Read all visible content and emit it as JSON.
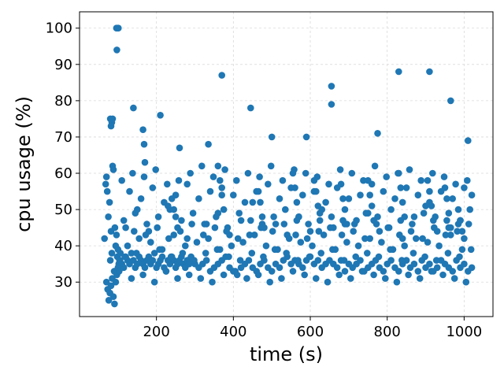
{
  "chart_data": {
    "type": "scatter",
    "title": "",
    "xlabel": "time (s)",
    "ylabel": "cpu usage (%)",
    "xlim": [
      0,
      1075
    ],
    "ylim": [
      20.5,
      104.5
    ],
    "xticks": [
      200,
      400,
      600,
      800,
      1000
    ],
    "yticks": [
      30,
      40,
      50,
      60,
      70,
      80,
      90,
      100
    ],
    "grid": true,
    "marker_color": "#1f77b4",
    "series": [
      {
        "x": [
          65,
          68,
          70,
          72,
          75,
          78,
          80,
          82,
          84,
          86,
          88,
          90,
          92,
          94,
          96,
          98,
          100,
          102,
          104,
          106,
          70,
          73,
          76,
          79,
          82,
          85,
          88,
          91,
          94,
          97,
          100,
          103,
          105,
          110,
          115,
          120,
          125,
          130,
          135,
          140,
          145,
          150,
          155,
          160,
          165,
          170,
          175,
          180,
          185,
          190,
          195,
          200,
          205,
          210,
          215,
          220,
          225,
          230,
          235,
          240,
          245,
          250,
          255,
          260,
          265,
          270,
          275,
          280,
          285,
          290,
          295,
          300,
          310,
          320,
          330,
          340,
          350,
          360,
          370,
          380,
          390,
          400,
          410,
          420,
          430,
          440,
          450,
          460,
          470,
          480,
          490,
          500,
          510,
          520,
          530,
          540,
          550,
          560,
          570,
          580,
          590,
          600,
          610,
          620,
          630,
          640,
          650,
          660,
          670,
          680,
          690,
          700,
          710,
          720,
          730,
          740,
          750,
          760,
          770,
          780,
          790,
          800,
          810,
          820,
          830,
          840,
          850,
          860,
          870,
          880,
          890,
          900,
          910,
          920,
          930,
          940,
          950,
          960,
          970,
          980,
          990,
          1000,
          1010,
          1020,
          96,
          99,
          101,
          97,
          80,
          82,
          84,
          86,
          140,
          165,
          168,
          170,
          210,
          260,
          335,
          370,
          445,
          500,
          590,
          655,
          655,
          775,
          830,
          910,
          965,
          1010,
          120,
          150,
          180,
          230,
          280,
          330,
          360,
          390,
          420,
          450,
          480,
          510,
          540,
          570,
          600,
          630,
          660,
          690,
          720,
          750,
          780,
          810,
          840,
          870,
          900,
          930,
          960,
          990,
          125,
          155,
          185,
          215,
          245,
          275,
          305,
          335,
          365,
          395,
          425,
          455,
          485,
          515,
          545,
          575,
          605,
          635,
          665,
          695,
          725,
          755,
          785,
          815,
          845,
          875,
          905,
          935,
          965,
          995,
          130,
          160,
          190,
          220,
          250,
          280,
          310,
          340,
          370,
          400,
          430,
          460,
          490,
          520,
          550,
          580,
          610,
          640,
          670,
          700,
          730,
          760,
          790,
          820,
          850,
          880,
          910,
          940,
          970,
          1000,
          1020,
          115,
          145,
          175,
          205,
          235,
          265,
          295,
          325,
          355,
          385,
          415,
          445,
          475,
          505,
          535,
          565,
          595,
          625,
          655,
          685,
          715,
          745,
          775,
          805,
          835,
          865,
          895,
          925,
          955,
          985,
          1015,
          110,
          138,
          168,
          198,
          228,
          258,
          288,
          318,
          348,
          378,
          408,
          438,
          468,
          498,
          528,
          558,
          588,
          618,
          648,
          678,
          708,
          738,
          768,
          798,
          828,
          858,
          888,
          918,
          948,
          978,
          1008,
          118,
          148,
          178,
          208,
          238,
          268,
          298,
          328,
          358,
          388,
          418,
          448,
          478,
          508,
          538,
          568,
          598,
          628,
          658,
          688,
          718,
          748,
          778,
          808,
          838,
          868,
          898,
          928,
          958,
          988,
          1018,
          135,
          165,
          195,
          225,
          255,
          285,
          315,
          345,
          375,
          405,
          435,
          465,
          495,
          525,
          555,
          585,
          615,
          645,
          675,
          705,
          735,
          765,
          795,
          825,
          855,
          885,
          915,
          945,
          975,
          1005,
          142,
          172,
          202,
          232,
          262,
          292,
          322,
          352,
          382,
          412,
          442,
          472,
          502,
          532,
          562,
          592,
          622,
          652,
          682,
          712,
          742,
          772,
          802,
          832,
          862,
          892,
          922,
          952,
          982,
          1012,
          240,
          245,
          250,
          255,
          360,
          365,
          370,
          375,
          465,
          470,
          475,
          480,
          555,
          560,
          565,
          570,
          610,
          615,
          620,
          625,
          680,
          685,
          690,
          695,
          750,
          755,
          760,
          765,
          830,
          835,
          840,
          845,
          905,
          910,
          915,
          920,
          950,
          955,
          960,
          965,
          985,
          990,
          995,
          1000
        ],
        "y": [
          42,
          57,
          59,
          55,
          48,
          52,
          36,
          44,
          38,
          62,
          61,
          33,
          45,
          40,
          43,
          37,
          39,
          35,
          36,
          38,
          30,
          28,
          25,
          27,
          29,
          31,
          26,
          24,
          30,
          32,
          34,
          33,
          36,
          35,
          34,
          37,
          36,
          35,
          38,
          36,
          34,
          35,
          37,
          36,
          35,
          34,
          36,
          37,
          35,
          36,
          38,
          34,
          35,
          36,
          37,
          34,
          33,
          36,
          35,
          37,
          36,
          34,
          35,
          36,
          37,
          35,
          34,
          36,
          35,
          37,
          36,
          35,
          34,
          35,
          36,
          33,
          34,
          35,
          36,
          37,
          34,
          33,
          32,
          34,
          35,
          36,
          34,
          33,
          35,
          36,
          34,
          33,
          35,
          34,
          36,
          37,
          35,
          36,
          35,
          34,
          36,
          37,
          35,
          36,
          34,
          35,
          36,
          35,
          34,
          36,
          33,
          35,
          34,
          35,
          36,
          33,
          34,
          35,
          36,
          34,
          33,
          35,
          36,
          34,
          33,
          35,
          36,
          34,
          35,
          33,
          36,
          34,
          35,
          33,
          34,
          36,
          35,
          34,
          33,
          36,
          34,
          35,
          33,
          34,
          100,
          100,
          100,
          94,
          75,
          73,
          74,
          75,
          78,
          72,
          68,
          63,
          76,
          67,
          68,
          87,
          78,
          70,
          70,
          84,
          79,
          71,
          88,
          88,
          80,
          69,
          45,
          50,
          44,
          51,
          42,
          46,
          49,
          43,
          47,
          52,
          45,
          46,
          43,
          48,
          44,
          50,
          45,
          46,
          47,
          49,
          44,
          50,
          42,
          48,
          51,
          44,
          45,
          47,
          40,
          42,
          41,
          39,
          43,
          40,
          41,
          42,
          39,
          40,
          41,
          43,
          40,
          39,
          42,
          41,
          40,
          43,
          39,
          41,
          40,
          42,
          41,
          39,
          40,
          42,
          41,
          40,
          43,
          39,
          55,
          53,
          56,
          52,
          54,
          57,
          53,
          55,
          56,
          54,
          52,
          55,
          57,
          53,
          56,
          54,
          55,
          52,
          56,
          53,
          54,
          57,
          55,
          53,
          56,
          54,
          52,
          55,
          53,
          56,
          54,
          47,
          49,
          46,
          48,
          50,
          47,
          49,
          46,
          48,
          45,
          49,
          47,
          46,
          48,
          50,
          47,
          46,
          49,
          48,
          47,
          46,
          49,
          48,
          45,
          47,
          46,
          49,
          48,
          47,
          46,
          50,
          58,
          60,
          59,
          61,
          57,
          58,
          60,
          62,
          59,
          61,
          58,
          60,
          59,
          62,
          58,
          61,
          60,
          59,
          57,
          61,
          60,
          58,
          62,
          59,
          60,
          61,
          58,
          60,
          59,
          57,
          58,
          37,
          38,
          36,
          39,
          37,
          38,
          36,
          38,
          39,
          37,
          36,
          38,
          37,
          39,
          38,
          36,
          37,
          38,
          39,
          36,
          37,
          38,
          37,
          39,
          36,
          38,
          37,
          36,
          38,
          37,
          39,
          31,
          32,
          30,
          33,
          31,
          32,
          31,
          30,
          32,
          33,
          31,
          32,
          30,
          31,
          33,
          32,
          31,
          30,
          32,
          31,
          33,
          32,
          31,
          30,
          32,
          31,
          33,
          32,
          31,
          30,
          44,
          43,
          45,
          42,
          44,
          46,
          43,
          45,
          44,
          42,
          43,
          45,
          44,
          46,
          43,
          42,
          44,
          45,
          43,
          44,
          42,
          46,
          45,
          43,
          44,
          42,
          45,
          43,
          44,
          46,
          53,
          50,
          48,
          45,
          62,
          58,
          54,
          50,
          55,
          52,
          48,
          45,
          60,
          56,
          52,
          48,
          58,
          55,
          51,
          47,
          57,
          53,
          50,
          46,
          58,
          54,
          51,
          47,
          60,
          56,
          52,
          48,
          58,
          55,
          51,
          47,
          56,
          53,
          49,
          45,
          50,
          47,
          44,
          42
        ]
      }
    ]
  }
}
